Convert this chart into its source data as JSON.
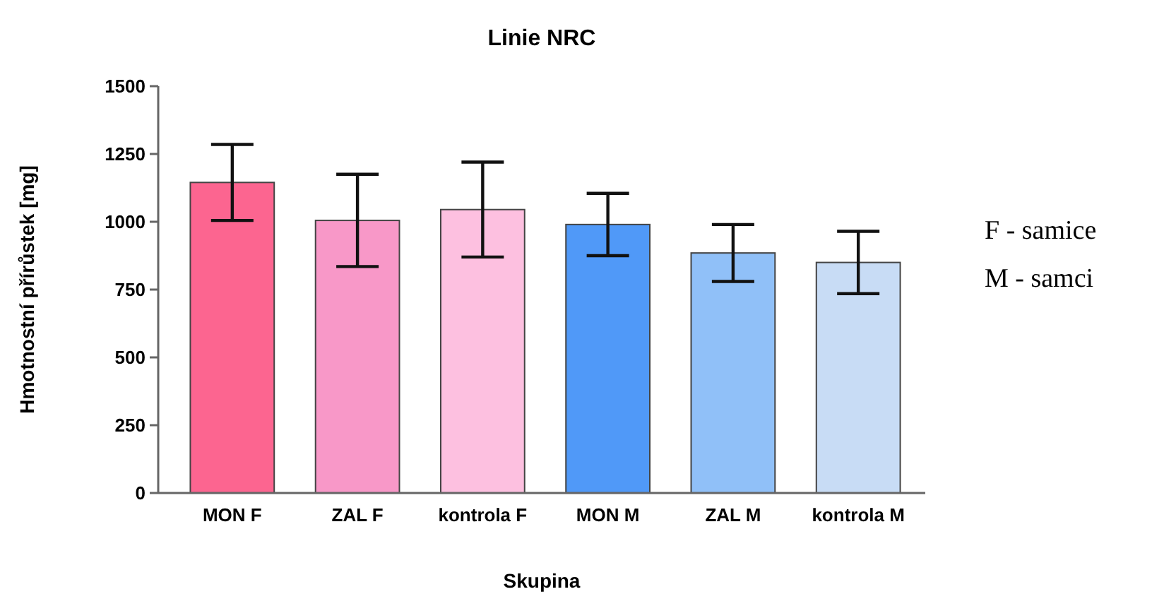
{
  "chart_data": {
    "type": "bar",
    "title": "Linie NRC",
    "xlabel": "Skupina",
    "ylabel": "Hmotnostní přírůstek [mg]",
    "categories": [
      "MON F",
      "ZAL F",
      "kontrola F",
      "MON M",
      "ZAL M",
      "kontrola M"
    ],
    "values": [
      1145,
      1005,
      1045,
      990,
      885,
      850
    ],
    "errors": [
      140,
      170,
      175,
      115,
      105,
      115
    ],
    "colors": [
      "#fc6590",
      "#f898c8",
      "#fdc0e0",
      "#5099f8",
      "#90c0f8",
      "#c8dcf5"
    ],
    "ylim": [
      0,
      1500
    ],
    "yticks": [
      0,
      250,
      500,
      750,
      1000,
      1250,
      1500
    ],
    "grid": false,
    "annotations": [
      "F - samice",
      "M - samci"
    ]
  }
}
